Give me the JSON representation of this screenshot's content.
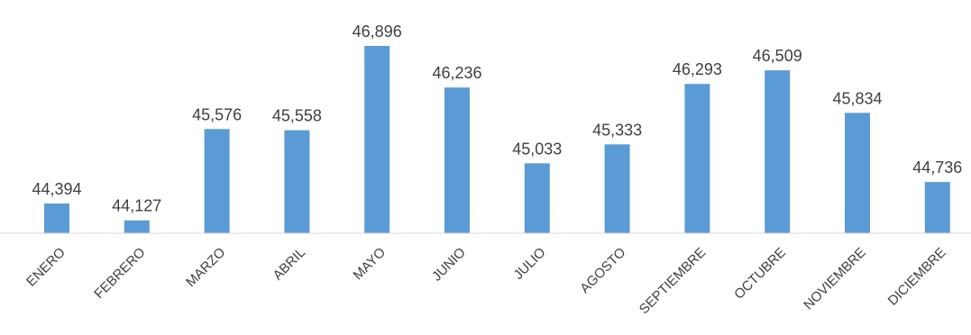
{
  "chart_data": {
    "type": "bar",
    "categories": [
      "ENERO",
      "FEBRERO",
      "MARZO",
      "ABRIL",
      "MAYO",
      "JUNIO",
      "JULIO",
      "AGOSTO",
      "SEPTIEMBRE",
      "OCTUBRE",
      "NOVIEMBRE",
      "DICIEMBRE"
    ],
    "values": [
      44394,
      44127,
      45576,
      45558,
      46896,
      46236,
      45033,
      45333,
      46293,
      46509,
      45834,
      44736
    ],
    "data_labels": [
      "44,394",
      "44,127",
      "45,576",
      "45,558",
      "46,896",
      "46,236",
      "45,033",
      "45,333",
      "46,293",
      "46,509",
      "45,834",
      "44,736"
    ],
    "title": "",
    "xlabel": "",
    "ylabel": "",
    "ylim": [
      40000,
      47000
    ],
    "grid": false,
    "legend": "none",
    "bar_color": "#5B9BD5",
    "axis_color": "#D9D9D9",
    "text_color": "#404040"
  }
}
